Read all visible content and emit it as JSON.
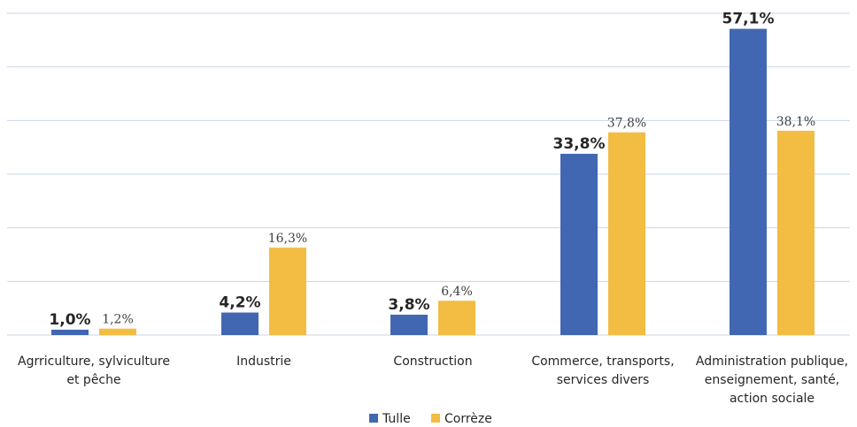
{
  "chart_data": {
    "type": "bar",
    "categories": [
      [
        "Agrriculture, sylviculture",
        "et pêche"
      ],
      [
        "Industrie"
      ],
      [
        "Construction"
      ],
      [
        "Commerce, transports,",
        "services divers"
      ],
      [
        "Administration publique,",
        "enseignement, santé,",
        "action sociale"
      ]
    ],
    "series": [
      {
        "name": "Tulle",
        "color": "#4267b2",
        "values": [
          1.0,
          4.2,
          3.8,
          33.8,
          57.1
        ],
        "labels": [
          "1,0%",
          "4,2%",
          "3,8%",
          "33,8%",
          "57,1%"
        ]
      },
      {
        "name": "Corrèze",
        "color": "#f2bd42",
        "values": [
          1.2,
          16.3,
          6.4,
          37.8,
          38.1
        ],
        "labels": [
          "1,2%",
          "16,3%",
          "6,4%",
          "37,8%",
          "38,1%"
        ]
      }
    ],
    "ylim": [
      0,
      60
    ],
    "grid": true,
    "legend_position": "bottom"
  }
}
